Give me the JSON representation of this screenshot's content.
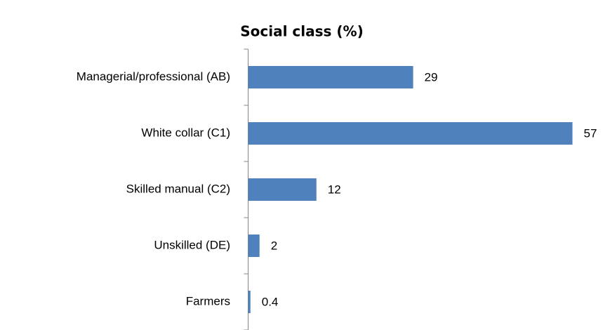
{
  "chart_data": {
    "type": "bar",
    "orientation": "horizontal",
    "title": "Social class (%)",
    "categories": [
      "Managerial/professional (AB)",
      "White collar (C1)",
      "Skilled manual (C2)",
      "Unskilled (DE)",
      "Farmers"
    ],
    "values": [
      29,
      57,
      12,
      2,
      0.4
    ],
    "color": "#4f81bd"
  }
}
